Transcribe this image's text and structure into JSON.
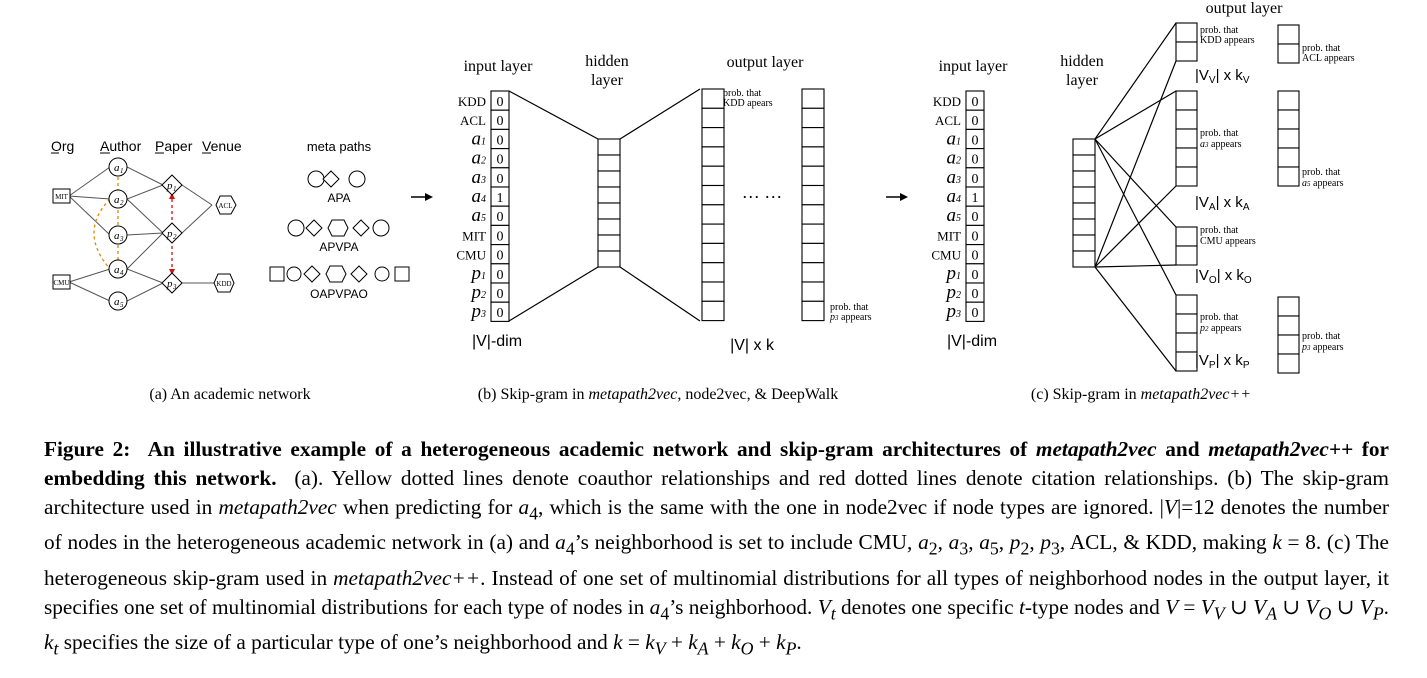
{
  "panel_a": {
    "headers": [
      "Org",
      "Author",
      "Paper",
      "Venue"
    ],
    "orgs": [
      "MIT",
      "CMU"
    ],
    "authors": [
      "a1",
      "a2",
      "a3",
      "a4",
      "a5"
    ],
    "papers": [
      "p1",
      "p2",
      "p3"
    ],
    "venues": [
      "ACL",
      "KDD"
    ],
    "meta_paths_title": "meta paths",
    "meta_paths": [
      "APA",
      "APVPA",
      "OAPVPAO"
    ],
    "caption": "(a) An academic network"
  },
  "panel_b": {
    "input_title": "input layer",
    "hidden_title": "hidden\nlayer",
    "output_title": "output layer",
    "rows": [
      {
        "label": "KDD",
        "value": "0"
      },
      {
        "label": "ACL",
        "value": "0"
      },
      {
        "label": "a1",
        "value": "0"
      },
      {
        "label": "a2",
        "value": "0"
      },
      {
        "label": "a3",
        "value": "0"
      },
      {
        "label": "a4",
        "value": "1"
      },
      {
        "label": "a5",
        "value": "0"
      },
      {
        "label": "MIT",
        "value": "0"
      },
      {
        "label": "CMU",
        "value": "0"
      },
      {
        "label": "p1",
        "value": "0"
      },
      {
        "label": "p2",
        "value": "0"
      },
      {
        "label": "p3",
        "value": "0"
      }
    ],
    "dim_label": "|V|-dim",
    "out_note_top": "prob. that\nKDD apears",
    "out_note_bottom": "prob. that\np3 appears",
    "dots": "··· ···",
    "out_dim_label": "|V| x k",
    "caption_pre": "(b) Skip-gram in ",
    "caption_em": "metapath2vec",
    "caption_post": ", node2vec, & DeepWalk"
  },
  "panel_c": {
    "input_title": "input layer",
    "hidden_title": "hidden\nlayer",
    "output_title": "output layer",
    "dim_label": "|V|-dim",
    "groups": [
      {
        "left_note": "prob. that\nKDD appears",
        "right_note": "prob. that\nACL appears",
        "label": "|VV| x kV"
      },
      {
        "left_note": "prob. that\na3 appears",
        "right_note": "prob. that\na5 appears",
        "label": "|VA| x kA"
      },
      {
        "left_note": "prob. that\nCMU appears",
        "right_note": "",
        "label": "|VO| x kO"
      },
      {
        "left_note": "prob. that\np2 appears",
        "right_note": "prob. that\np3 appears",
        "label": "|VP| x kP"
      }
    ],
    "caption_pre": "(c) Skip-gram in ",
    "caption_em": "metapath2vec++"
  },
  "caption": {
    "label": "Figure 2:",
    "bold_1": "An illustrative example of a heterogeneous academic network and skip-gram architectures of ",
    "bold_em_1": "metapath2vec",
    "bold_2": " and ",
    "bold_em_2": "metapath2vec++",
    "bold_3": " for embedding this network.",
    "part_a": "(a). Yellow dotted lines denote coauthor relationships and red dotted lines denote citation relationships. (b) The skip-gram architecture used in ",
    "em_m2v": "metapath2vec",
    "part_b": " when predicting for ",
    "a4": "a",
    "part_c": ", which is the same with the one in node2vec if node types are ignored. |",
    "V": "V",
    "part_d": "|=12 denotes the number of nodes in the heterogeneous academic network in (a) and ",
    "part_e": "’s neighborhood is set to include CMU, ",
    "part_f": ", ACL, & KDD, making ",
    "k": "k",
    "part_g": " = 8. (c) The heterogeneous skip-gram used in ",
    "em_m2vpp": "metapath2vec++",
    "part_h": ". Instead of one set of multinomial distributions for all types of neighborhood nodes in the output layer, it specifies one set of multinomial distributions for each type of nodes in ",
    "part_i": "’s neighborhood. ",
    "part_j": " denotes one specific ",
    "t": "t",
    "part_k": "-type nodes and ",
    "part_l": " specifies the size of a particular type of one’s neighborhood and "
  }
}
